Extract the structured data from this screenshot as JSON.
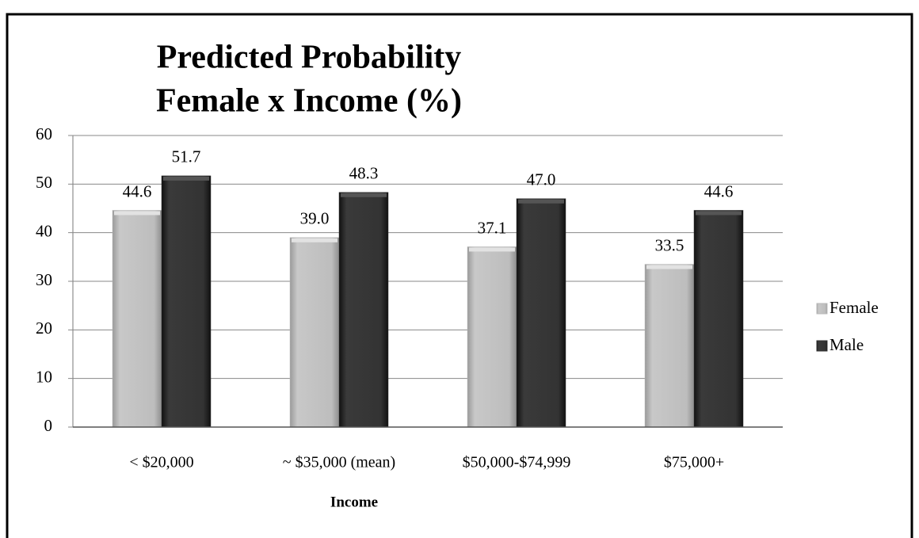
{
  "chart_data": {
    "type": "bar",
    "title": [
      "Predicted Probability",
      "Female x Income (%)"
    ],
    "x_label": "Income",
    "categories": [
      "< $20,000",
      "~ $35,000 (mean)",
      "$50,000-$74,999",
      "$75,000+"
    ],
    "series": [
      {
        "name": "Female",
        "color": "#b9b9b9",
        "values": [
          44.6,
          39.0,
          37.1,
          33.5
        ],
        "value_labels": [
          "44.6",
          "39.0",
          "37.1",
          "33.5"
        ]
      },
      {
        "name": "Male",
        "color": "#333333",
        "values": [
          51.7,
          48.3,
          47.0,
          44.6
        ],
        "value_labels": [
          "51.7",
          "48.3",
          "47.0",
          "44.6"
        ]
      }
    ],
    "ylim": [
      0,
      60
    ],
    "yticks": [
      0,
      10,
      20,
      30,
      40,
      50,
      60
    ],
    "grid": true,
    "legend": "right"
  }
}
